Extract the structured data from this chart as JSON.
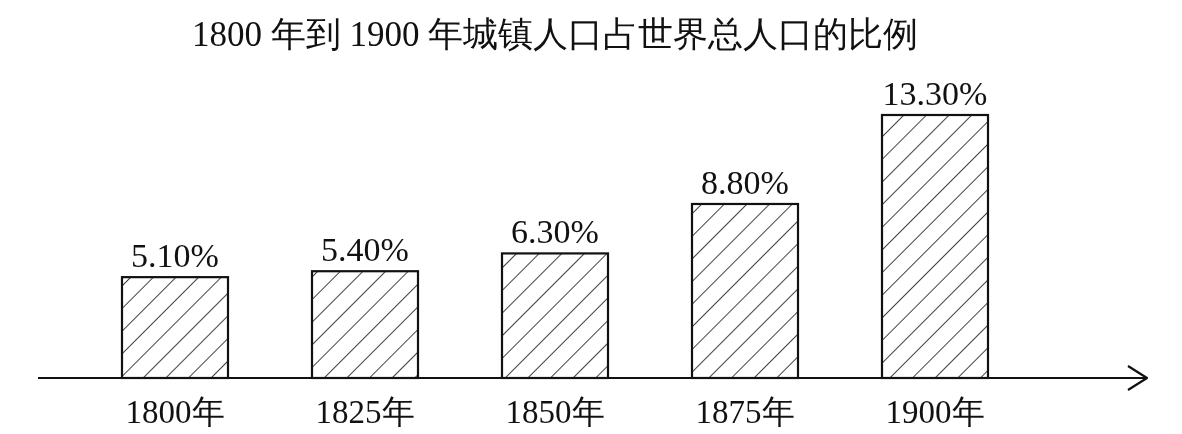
{
  "chart_data": {
    "type": "bar",
    "title": "1800 年到 1900 年城镇人口占世界总人口的比例",
    "categories": [
      "1800年",
      "1825年",
      "1850年",
      "1875年",
      "1900年"
    ],
    "values": [
      5.1,
      5.4,
      6.3,
      8.8,
      13.3
    ],
    "value_labels": [
      "5.10%",
      "5.40%",
      "6.30%",
      "8.80%",
      "13.30%"
    ],
    "color": "#111111"
  }
}
